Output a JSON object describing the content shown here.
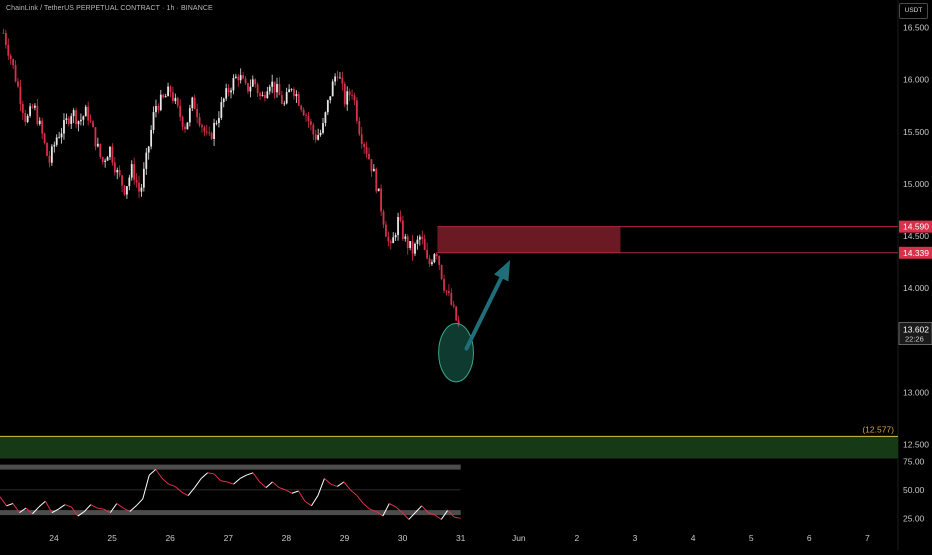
{
  "header": {
    "title": "ChainLink / TetherUS PERPETUAL CONTRACT · 1h · BINANCE",
    "currency": "USDT"
  },
  "colors": {
    "background": "#000000",
    "candle_up": "#e6e6e6",
    "candle_down": "#d8304a",
    "resistance_zone": "#6b1a24",
    "support_zone": "#163a16",
    "support_line": "#d4c24a",
    "arrow": "#1f6f7a",
    "circle": "#1c6a55",
    "rsi_band": "#4d4d4d",
    "rsi_up": "#ffffff",
    "rsi_down": "#e0304a"
  },
  "chart_data": [
    {
      "type": "candlestick",
      "ylim": [
        12.35,
        16.65
      ],
      "y_ticks": [
        "16.500",
        "16.000",
        "15.500",
        "15.000",
        "14.500",
        "14.000",
        "13.500",
        "13.000",
        "12.500"
      ],
      "y_tick_values": [
        16.5,
        16.0,
        15.5,
        15.0,
        14.5,
        14.0,
        13.5,
        13.0,
        12.5
      ],
      "x_ticks": [
        "24",
        "25",
        "26",
        "27",
        "28",
        "29",
        "30",
        "31",
        "Jun",
        "2",
        "3",
        "4",
        "5",
        "6",
        "7"
      ],
      "x_tick_days": [
        24,
        25,
        26,
        27,
        28,
        29,
        30,
        31,
        32,
        33,
        34,
        35,
        36,
        37,
        38
      ],
      "x_start_day": 23.13,
      "hours_per_day": 24,
      "close_path": [
        16.45,
        16.2,
        15.9,
        15.6,
        15.75,
        15.5,
        15.2,
        15.45,
        15.55,
        15.7,
        15.6,
        15.7,
        15.45,
        15.2,
        15.35,
        15.1,
        14.95,
        15.15,
        14.9,
        15.3,
        15.75,
        15.8,
        15.9,
        15.7,
        15.55,
        15.8,
        15.6,
        15.4,
        15.6,
        15.8,
        15.95,
        16.05,
        15.9,
        16.0,
        15.8,
        16.0,
        15.9,
        15.75,
        15.95,
        15.8,
        15.65,
        15.45,
        15.5,
        15.85,
        16.1,
        15.8,
        15.9,
        15.5,
        15.3,
        15.05,
        14.7,
        14.35,
        14.65,
        14.45,
        14.35,
        14.5,
        14.2,
        14.4,
        14.05,
        13.85,
        13.62
      ],
      "current_price": "13.602",
      "countdown": "22:26",
      "levels": [
        {
          "label": "14.590",
          "value": 14.59
        },
        {
          "label": "14.339",
          "value": 14.339
        }
      ],
      "resistance_zone": {
        "low": 14.339,
        "high": 14.59,
        "from_day": 30.6,
        "to_day": 33.75
      },
      "support_zone": {
        "low": 12.35,
        "high": 12.577,
        "label": "(12.577)"
      },
      "projection_arrow": {
        "from": [
          31.1,
          13.42
        ],
        "to": [
          31.85,
          14.27
        ]
      },
      "marker_circle": {
        "center": [
          30.92,
          13.38
        ],
        "radius_days": 0.3,
        "radius_price": 0.28
      }
    },
    {
      "type": "line",
      "name": "RSI",
      "ylim": [
        20,
        78
      ],
      "y_ticks": [
        "75.00",
        "50.00",
        "25.00"
      ],
      "y_tick_values": [
        75,
        50,
        25
      ],
      "bands": [
        30,
        70
      ],
      "mid": 50,
      "values": [
        44,
        36,
        38,
        30,
        34,
        29,
        35,
        40,
        30,
        33,
        37,
        35,
        27,
        31,
        37,
        34,
        33,
        30,
        38,
        34,
        31,
        36,
        42,
        63,
        68,
        60,
        55,
        53,
        48,
        45,
        52,
        60,
        65,
        64,
        58,
        57,
        55,
        60,
        63,
        65,
        57,
        52,
        57,
        52,
        50,
        47,
        49,
        40,
        36,
        45,
        60,
        55,
        53,
        57,
        50,
        45,
        38,
        33,
        31,
        27,
        38,
        35,
        30,
        24,
        30,
        36,
        30,
        28,
        24,
        32,
        26,
        25
      ]
    }
  ]
}
